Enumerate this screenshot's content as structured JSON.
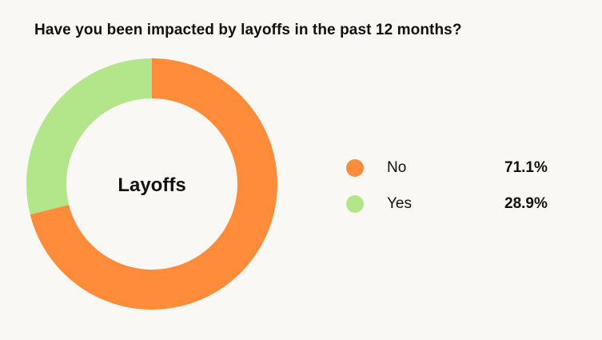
{
  "chart_data": {
    "type": "pie",
    "title": "Have you been impacted by layoffs in the past 12 months?",
    "center_label": "Layoffs",
    "legend_position": "right",
    "slices": [
      {
        "label": "No",
        "value": 71.1,
        "display": "71.1%",
        "color": "#ff8c3a"
      },
      {
        "label": "Yes",
        "value": 28.9,
        "display": "28.9%",
        "color": "#b3e58a"
      }
    ]
  }
}
